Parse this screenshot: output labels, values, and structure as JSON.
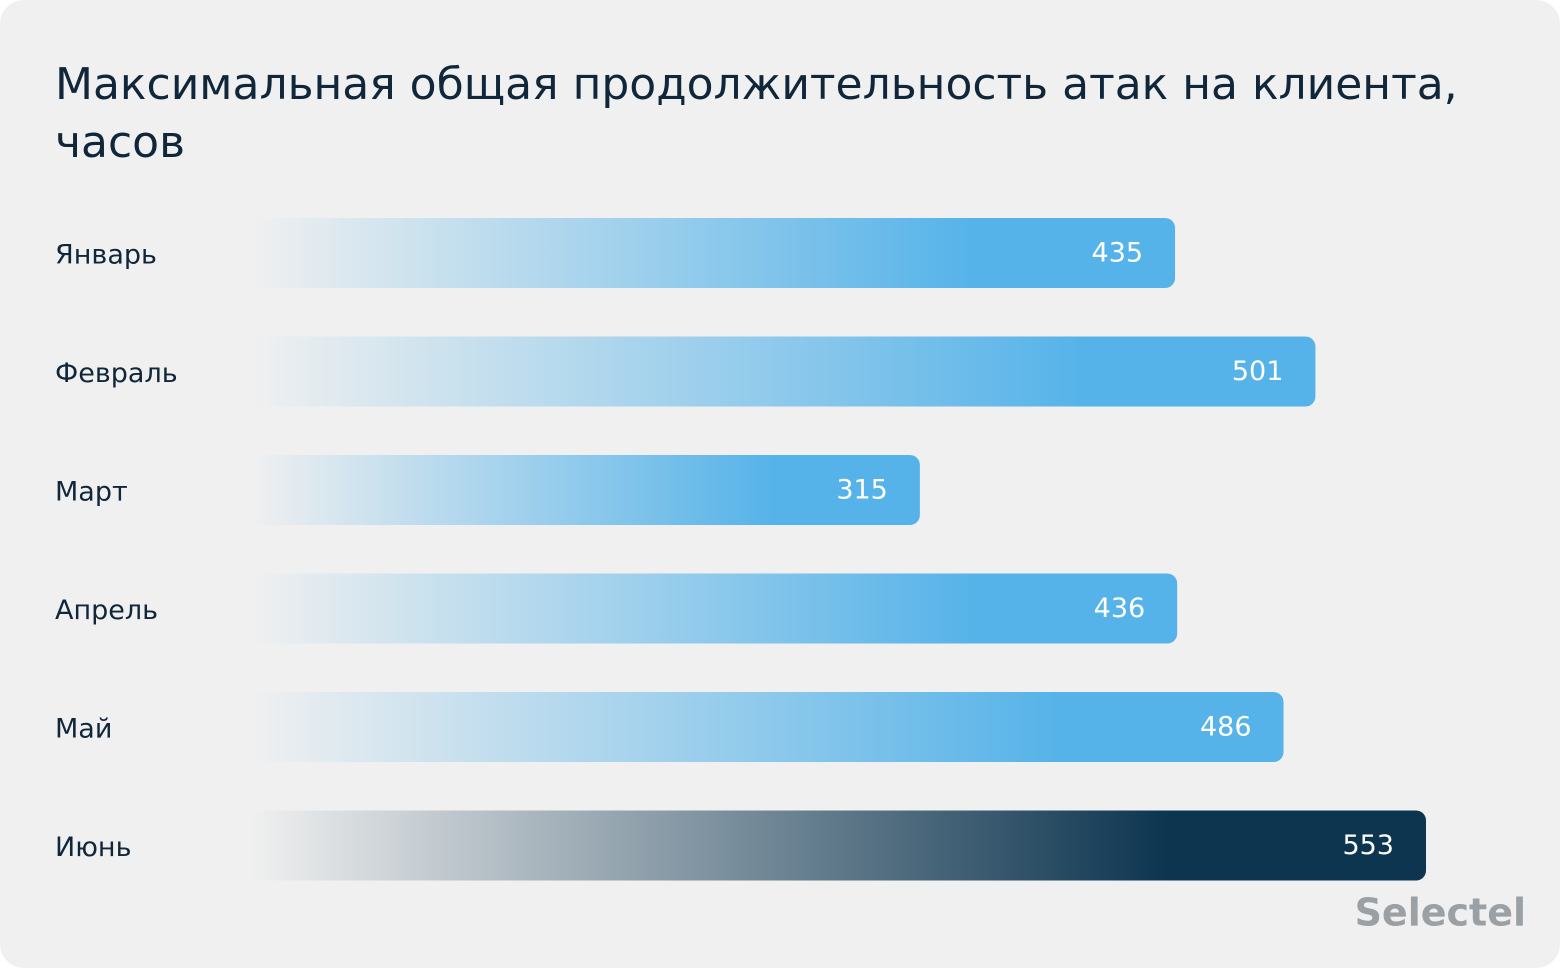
{
  "chart_data": {
    "type": "hbar",
    "title": "Максимальная общая продолжительность атак на клиента,",
    "title_line2": "часов",
    "categories": [
      "Январь",
      "Февраль",
      "Март",
      "Апрель",
      "Май",
      "Июнь"
    ],
    "values": [
      435,
      501,
      315,
      436,
      486,
      553
    ],
    "colors": [
      "#56b3e9",
      "#56b3e9",
      "#56b3e9",
      "#56b3e9",
      "#56b3e9",
      "#0d3550"
    ],
    "logo": "Selectel"
  }
}
